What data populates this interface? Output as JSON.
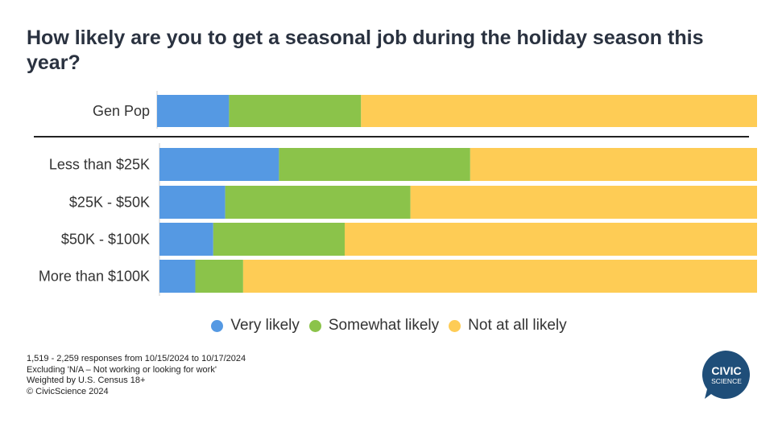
{
  "title": "How likely are you to get a seasonal job during the holiday season this year?",
  "chart_data": {
    "type": "bar",
    "orientation": "horizontal",
    "stacked": true,
    "normalized_percent": true,
    "title": "How likely are you to get a seasonal job during the holiday season this year?",
    "categories": [
      "Gen Pop",
      "Less than $25K",
      "$25K - $50K",
      "$50K - $100K",
      "More than $100K"
    ],
    "groups": [
      [
        "Gen Pop"
      ],
      [
        "Less than $25K",
        "$25K - $50K",
        "$50K - $100K",
        "More than $100K"
      ]
    ],
    "series": [
      {
        "name": "Very likely",
        "color": "#5599e3",
        "values": [
          12,
          20,
          11,
          9,
          6
        ]
      },
      {
        "name": "Somewhat likely",
        "color": "#8bc34a",
        "values": [
          22,
          32,
          31,
          22,
          8
        ]
      },
      {
        "name": "Not at all likely",
        "color": "#fecc55",
        "values": [
          66,
          48,
          58,
          69,
          86
        ]
      }
    ],
    "xlim": [
      0,
      100
    ],
    "xlabel": "",
    "ylabel": "",
    "grid": false,
    "legend": "bottom"
  },
  "footnotes": [
    "1,519 - 2,259 responses from 10/15/2024 to 10/17/2024",
    "Excluding 'N/A – Not working or looking for work'",
    "Weighted by U.S. Census 18+",
    "© CivicScience 2024"
  ],
  "logo": {
    "line1": "CIVIC",
    "line2": "SCIENCE",
    "color": "#1f4e79"
  }
}
